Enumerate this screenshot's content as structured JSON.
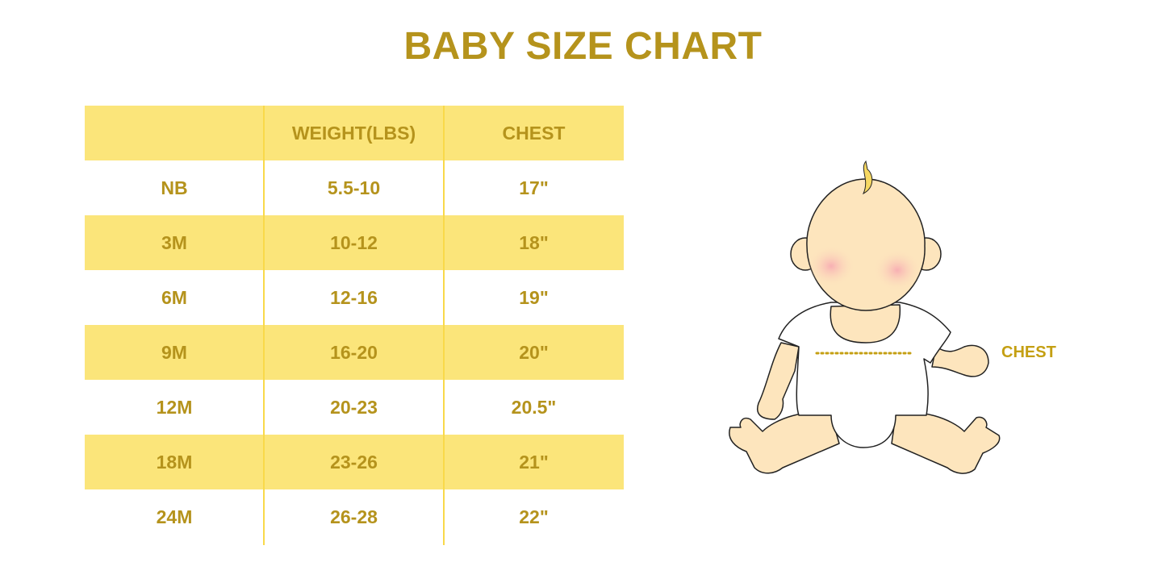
{
  "title": "BABY SIZE CHART",
  "table": {
    "headers": [
      "",
      "WEIGHT(LBS)",
      "CHEST"
    ],
    "rows": [
      [
        "NB",
        "5.5-10",
        "17\""
      ],
      [
        "3M",
        "10-12",
        "18\""
      ],
      [
        "6M",
        "12-16",
        "19\""
      ],
      [
        "9M",
        "16-20",
        "20\""
      ],
      [
        "12M",
        "20-23",
        "20.5\""
      ],
      [
        "18M",
        "23-26",
        "21\""
      ],
      [
        "24M",
        "26-28",
        "22\""
      ]
    ]
  },
  "illustration": {
    "chest_label": "CHEST"
  },
  "colors": {
    "text": "#b5931c",
    "row_highlight": "#fbe57a",
    "skin": "#fde5bd",
    "cheek": "#f7b3b8",
    "hair": "#f6d862"
  }
}
